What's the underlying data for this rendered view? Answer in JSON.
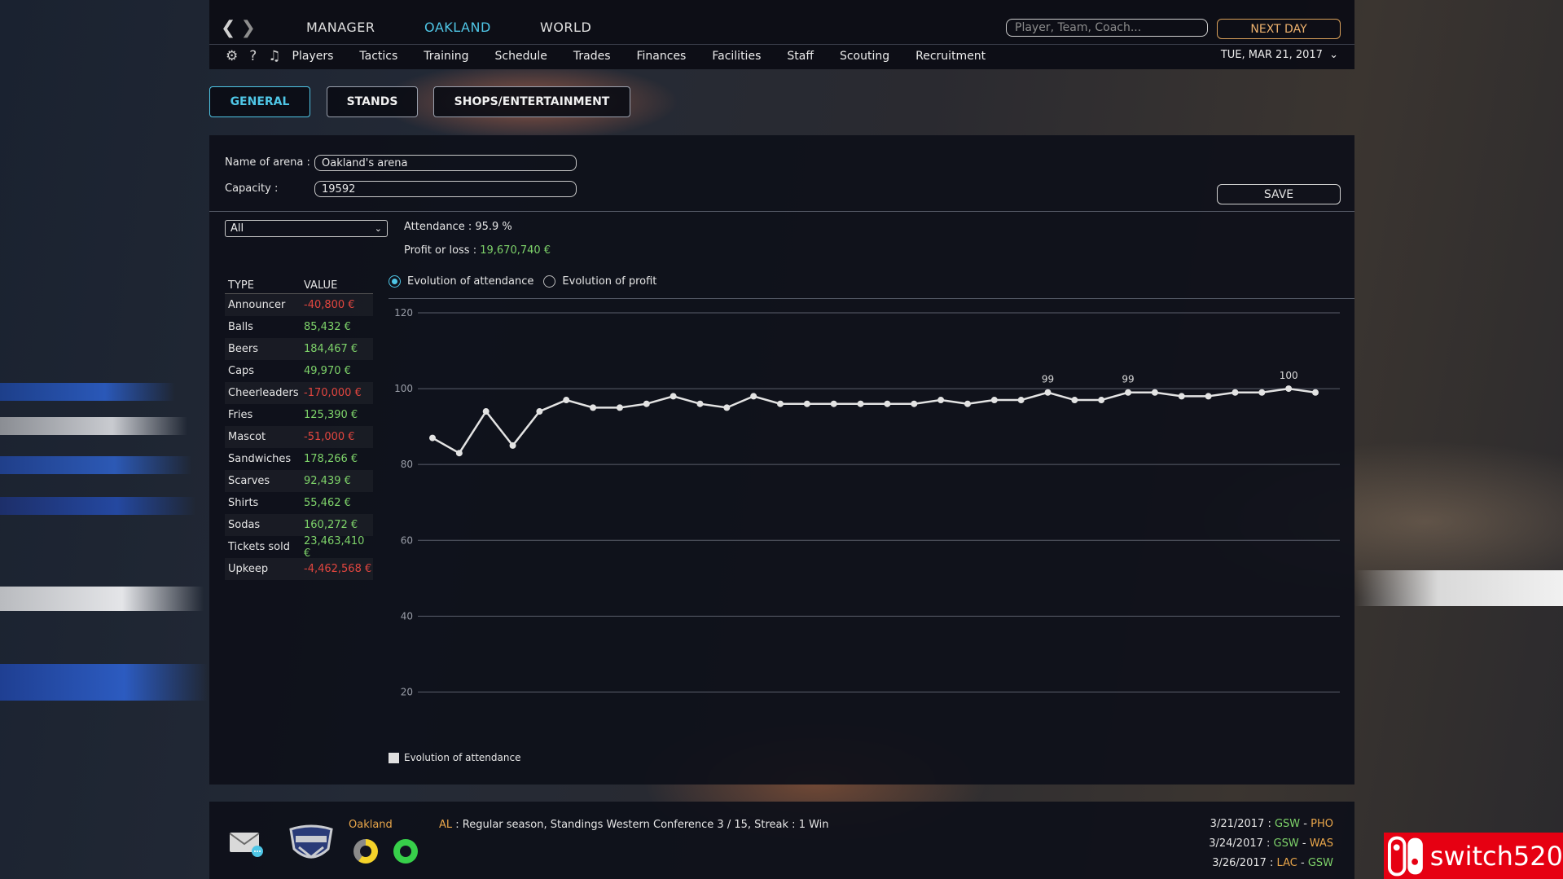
{
  "topbar": {
    "tabs": [
      {
        "label": "MANAGER",
        "active": false
      },
      {
        "label": "OAKLAND",
        "active": true
      },
      {
        "label": "WORLD",
        "active": false
      }
    ],
    "search_placeholder": "Player, Team, Coach...",
    "next_day_label": "NEXT DAY",
    "icons": {
      "back": "chevron-left-icon",
      "forward": "chevron-right-icon",
      "settings": "gear-icon",
      "help": "question-icon",
      "music": "music-note-icon"
    },
    "help_glyph": "?",
    "subnav": [
      "Players",
      "Tactics",
      "Training",
      "Schedule",
      "Trades",
      "Finances",
      "Facilities",
      "Staff",
      "Scouting",
      "Recruitment"
    ],
    "date": "TUE, MAR 21, 2017"
  },
  "section_tabs": [
    {
      "label": "GENERAL",
      "active": true
    },
    {
      "label": "STANDS",
      "active": false
    },
    {
      "label": "SHOPS/ENTERTAINMENT",
      "active": false
    }
  ],
  "arena": {
    "name_label": "Name of arena :",
    "name_value": "Oakland's arena",
    "capacity_label": "Capacity :",
    "capacity_value": "19592",
    "save_label": "SAVE"
  },
  "filter": {
    "selected": "All"
  },
  "stats": {
    "attendance": "Attendance : 95.9 %",
    "profit_label": "Profit or loss : ",
    "profit_value": "19,670,740 €"
  },
  "finance_table": {
    "headers": [
      "TYPE",
      "VALUE"
    ],
    "rows": [
      {
        "type": "Announcer",
        "value": "-40,800 €",
        "negative": true
      },
      {
        "type": "Balls",
        "value": "85,432 €",
        "negative": false
      },
      {
        "type": "Beers",
        "value": "184,467 €",
        "negative": false
      },
      {
        "type": "Caps",
        "value": "49,970 €",
        "negative": false
      },
      {
        "type": "Cheerleaders",
        "value": "-170,000 €",
        "negative": true
      },
      {
        "type": "Fries",
        "value": "125,390 €",
        "negative": false
      },
      {
        "type": "Mascot",
        "value": "-51,000 €",
        "negative": true
      },
      {
        "type": "Sandwiches",
        "value": "178,266 €",
        "negative": false
      },
      {
        "type": "Scarves",
        "value": "92,439 €",
        "negative": false
      },
      {
        "type": "Shirts",
        "value": "55,462 €",
        "negative": false
      },
      {
        "type": "Sodas",
        "value": "160,272 €",
        "negative": false
      },
      {
        "type": "Tickets sold",
        "value": "23,463,410 €",
        "negative": false
      },
      {
        "type": "Upkeep",
        "value": "-4,462,568 €",
        "negative": true
      }
    ]
  },
  "chart_options": [
    {
      "label": "Evolution of attendance",
      "selected": true
    },
    {
      "label": "Evolution of profit",
      "selected": false
    }
  ],
  "chart_data": {
    "type": "line",
    "ylim": [
      10,
      120
    ],
    "yticks": [
      20,
      40,
      60,
      80,
      100,
      120
    ],
    "grid": true,
    "legend": "bottom-left",
    "series": [
      {
        "name": "Evolution of attendance",
        "values": [
          87,
          83,
          94,
          85,
          94,
          97,
          95,
          95,
          96,
          98,
          96,
          95,
          98,
          96,
          96,
          96,
          96,
          96,
          96,
          97,
          96,
          97,
          97,
          99,
          97,
          97,
          99,
          99,
          98,
          98,
          99,
          99,
          100,
          99
        ],
        "point_labels": {
          "23": "99",
          "26": "99",
          "32": "100"
        }
      }
    ],
    "line_color": "#e3e3e3"
  },
  "bottom": {
    "icons": {
      "mail": "mail-icon",
      "team_logo": "team-logo-icon"
    },
    "team_name": "Oakland",
    "news_prefix": "AL",
    "news_text": " : Regular season, Standings Western Conference 3 / 15, Streak : 1 Win",
    "games": [
      {
        "date": "3/21/2017 : ",
        "home": "GSW",
        "away": "PHO",
        "home_color": "#7ed36a",
        "away_color": "#e9a64a"
      },
      {
        "date": "3/24/2017 : ",
        "home": "GSW",
        "away": "WAS",
        "home_color": "#7ed36a",
        "away_color": "#e9a64a"
      },
      {
        "date": "3/26/2017 : ",
        "home": "LAC",
        "away": "GSW",
        "home_color": "#e9a64a",
        "away_color": "#7ed36a"
      }
    ],
    "separator": " - "
  },
  "watermark": "switch520",
  "colors": {
    "accent": "#4fc6e6",
    "positive": "#7ed36a",
    "negative": "#e2463f",
    "orange": "#e9a64a"
  }
}
